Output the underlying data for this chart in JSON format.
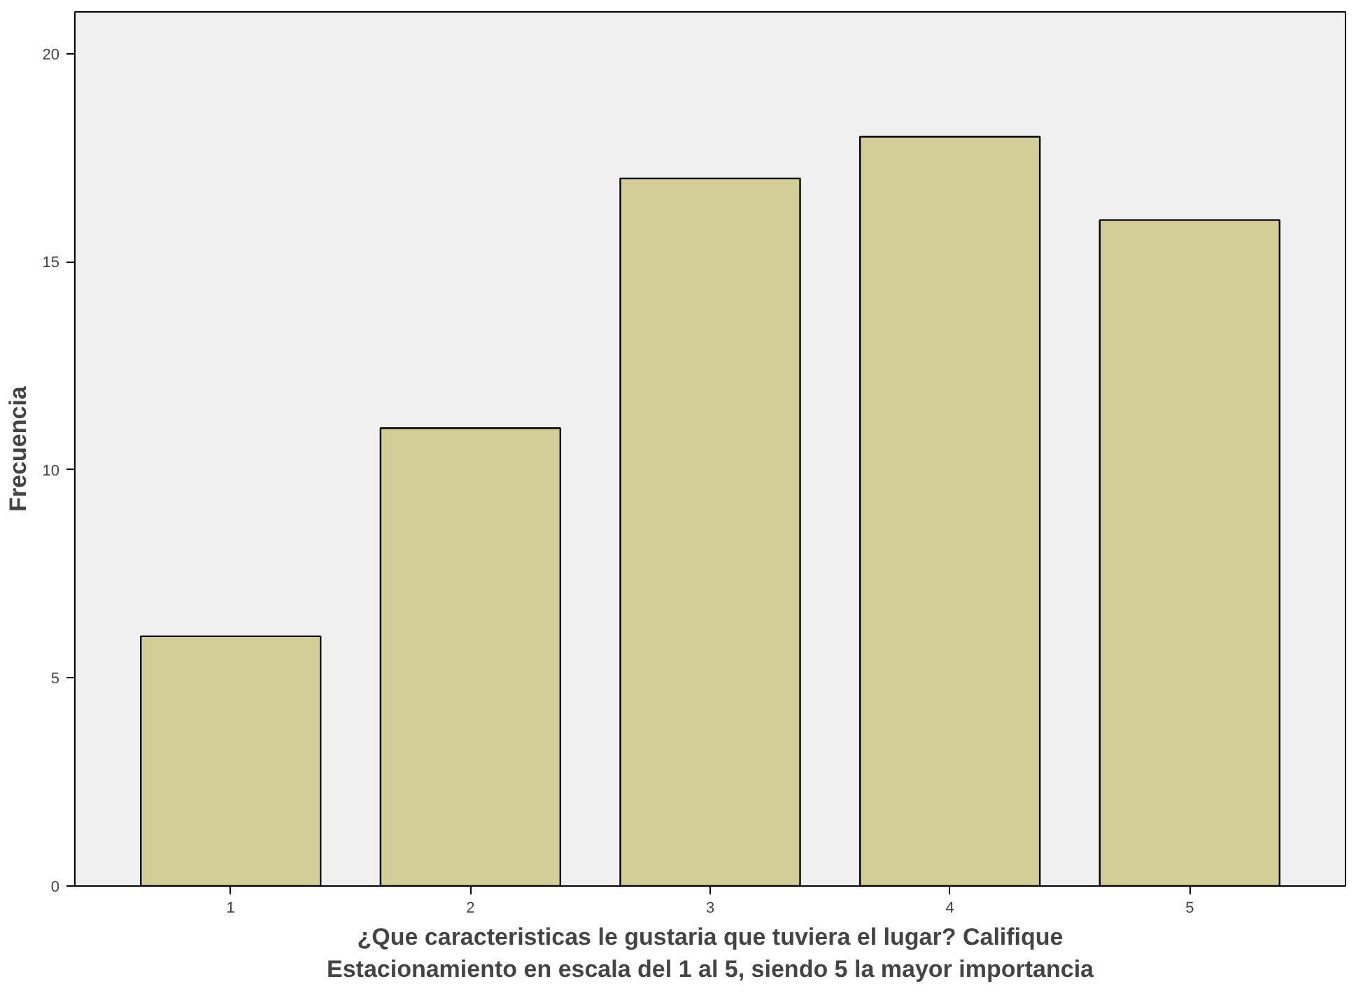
{
  "chart_data": {
    "type": "bar",
    "xlabel": "¿Que caracteristicas le gustaria que tuviera el lugar? Califique\nEstacionamiento en escala del 1 al 5, siendo 5 la mayor importancia",
    "ylabel": "Frecuencia",
    "categories": [
      "1",
      "2",
      "3",
      "4",
      "5"
    ],
    "values": [
      6,
      11,
      17,
      18,
      16
    ],
    "color": "#d3ce97",
    "ylim": [
      0,
      21
    ],
    "yticks": [
      0,
      5,
      10,
      15,
      20
    ],
    "grid": false
  }
}
